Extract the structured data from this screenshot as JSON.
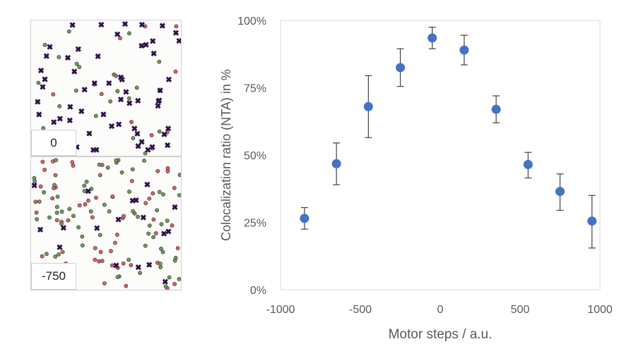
{
  "panels": [
    {
      "label": "0"
    },
    {
      "label": "-750"
    }
  ],
  "colors": {
    "red_dot": "#e06060",
    "green_dot": "#6a9e5a",
    "cross": "#1a1a2e",
    "cross_accent": "#7a1fa2",
    "marker": "#4472c4",
    "error_bar": "#404040",
    "plot_border": "#d9d9d9"
  },
  "chart_data": {
    "type": "scatter",
    "title": "",
    "xlabel": "Motor steps / a.u.",
    "ylabel": "Colocalization ratio (NTA) in %",
    "xlim": [
      -1000,
      1000
    ],
    "ylim": [
      0,
      100
    ],
    "xticks": [
      "-1000",
      "-500",
      "0",
      "500",
      "1000"
    ],
    "yticks": [
      "0%",
      "25%",
      "50%",
      "75%",
      "100%"
    ],
    "grid": false,
    "legend": "none",
    "points": [
      {
        "x": -850,
        "y": 26.5,
        "err_low": 22.5,
        "err_high": 30.5
      },
      {
        "x": -650,
        "y": 46.8,
        "err_low": 39.0,
        "err_high": 54.5
      },
      {
        "x": -450,
        "y": 68.0,
        "err_low": 56.5,
        "err_high": 79.5
      },
      {
        "x": -250,
        "y": 82.5,
        "err_low": 75.5,
        "err_high": 89.5
      },
      {
        "x": -50,
        "y": 93.5,
        "err_low": 89.5,
        "err_high": 97.5
      },
      {
        "x": 150,
        "y": 89.0,
        "err_low": 83.5,
        "err_high": 94.5
      },
      {
        "x": 350,
        "y": 67.0,
        "err_low": 62.0,
        "err_high": 72.0
      },
      {
        "x": 550,
        "y": 46.5,
        "err_low": 41.5,
        "err_high": 51.0
      },
      {
        "x": 750,
        "y": 36.5,
        "err_low": 29.5,
        "err_high": 43.0
      },
      {
        "x": 950,
        "y": 25.5,
        "err_low": 15.5,
        "err_high": 35.0
      }
    ]
  }
}
